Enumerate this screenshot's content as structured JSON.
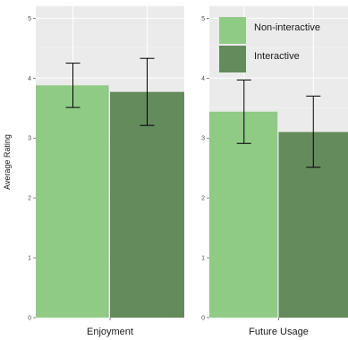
{
  "chart_data": {
    "type": "bar",
    "ylabel": "Average Rating",
    "ylim": [
      0,
      5.2
    ],
    "yticks": [
      0,
      1,
      2,
      3,
      4,
      5
    ],
    "grid": true,
    "legend_position": "top-left of right panel",
    "panels": [
      {
        "label": "Enjoyment",
        "bars": [
          {
            "series": "Non-interactive",
            "value": 3.88,
            "error_low": 3.51,
            "error_high": 4.25
          },
          {
            "series": "Interactive",
            "value": 3.77,
            "error_low": 3.21,
            "error_high": 4.33
          }
        ]
      },
      {
        "label": "Future Usage",
        "bars": [
          {
            "series": "Non-interactive",
            "value": 3.44,
            "error_low": 2.91,
            "error_high": 3.97
          },
          {
            "series": "Interactive",
            "value": 3.1,
            "error_low": 2.51,
            "error_high": 3.7
          }
        ]
      }
    ],
    "series": [
      {
        "name": "Non-interactive",
        "color": "#8fcb85"
      },
      {
        "name": "Interactive",
        "color": "#638b5b"
      }
    ]
  }
}
